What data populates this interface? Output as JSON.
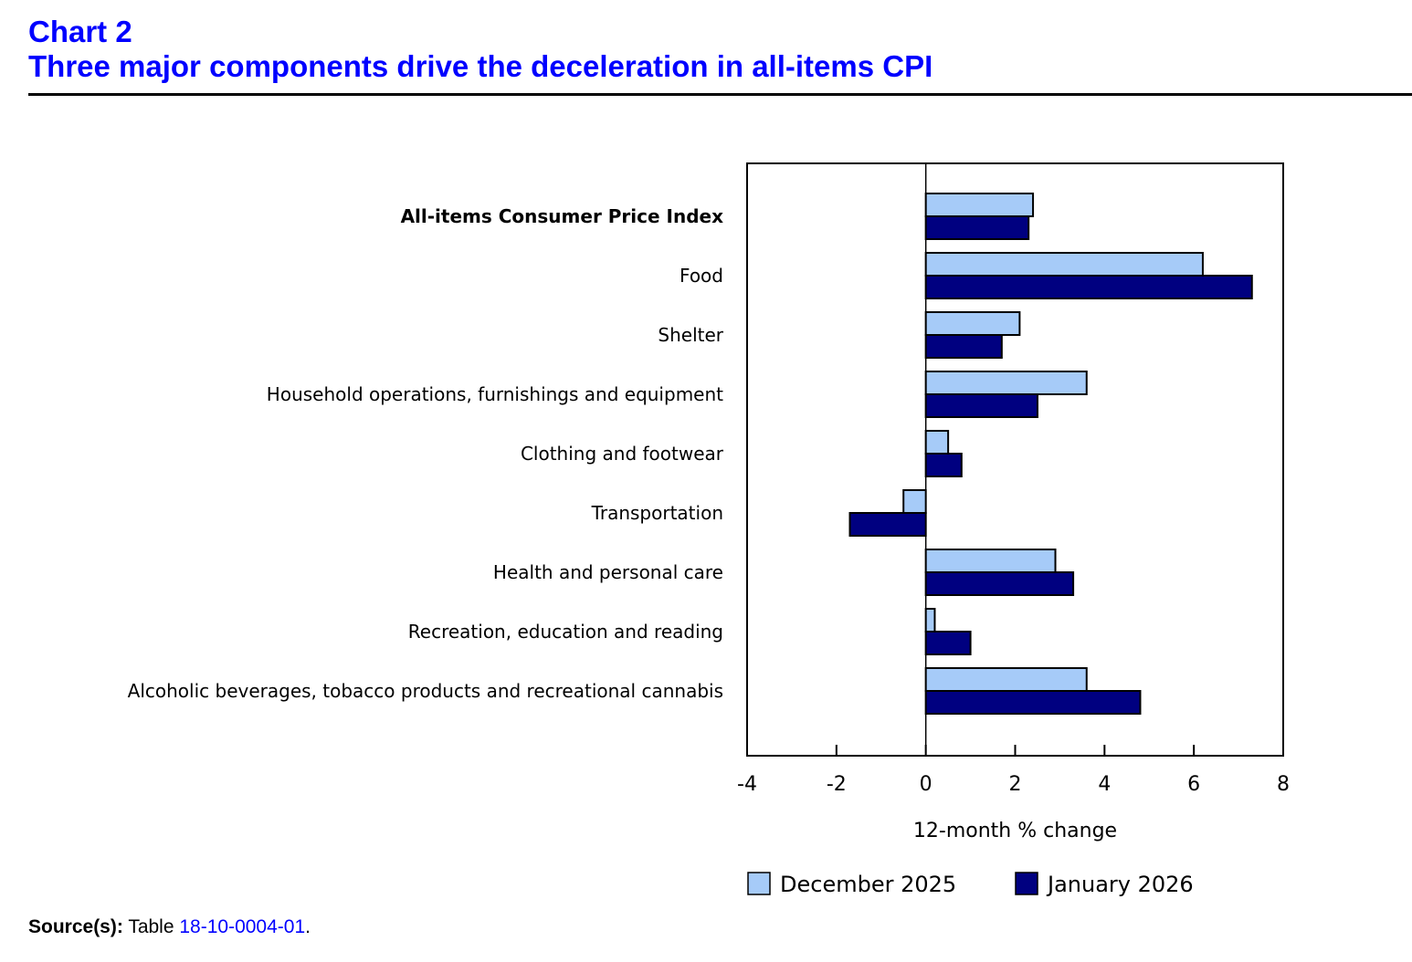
{
  "header": {
    "chart_number": "Chart 2",
    "title": "Three major components drive the deceleration in all-items CPI"
  },
  "source": {
    "label": "Source(s):",
    "prefix": "Table",
    "link_text": "18-10-0004-01",
    "suffix": "."
  },
  "colors": {
    "december": "#a6cbf8",
    "january": "#000080"
  },
  "chart_data": {
    "type": "bar",
    "orientation": "horizontal",
    "title": "Three major components drive the deceleration in all-items CPI",
    "xlabel": "12-month % change",
    "ylabel": "",
    "xlim": [
      -4,
      8
    ],
    "xticks": [
      -4,
      -2,
      0,
      2,
      4,
      6,
      8
    ],
    "grid": false,
    "legend_position": "bottom",
    "categories": [
      "All-items Consumer Price Index",
      "Food",
      "Shelter",
      "Household operations, furnishings and equipment",
      "Clothing and footwear",
      "Transportation",
      "Health and personal care",
      "Recreation, education and reading",
      "Alcoholic beverages, tobacco products and recreational cannabis"
    ],
    "bold_categories": [
      "All-items Consumer Price Index"
    ],
    "series": [
      {
        "name": "December 2025",
        "values": [
          2.4,
          6.2,
          2.1,
          3.6,
          0.5,
          -0.5,
          2.9,
          0.2,
          3.6
        ]
      },
      {
        "name": "January 2026",
        "values": [
          2.3,
          7.3,
          1.7,
          2.5,
          0.8,
          -1.7,
          3.3,
          1.0,
          4.8
        ]
      }
    ]
  }
}
